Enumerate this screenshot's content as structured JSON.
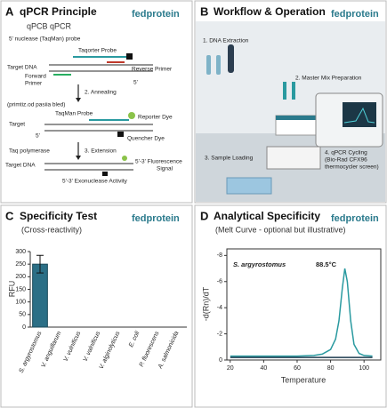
{
  "panels": {
    "a": {
      "letter": "A",
      "title": "qPCR Principle",
      "brand": "fedprotein",
      "subtitle": "qPCB qPCR",
      "labels": [
        "5' nuclease (TaqMan) probe",
        "Taqorter Probe",
        "Target DNA",
        "Reverse Primer",
        "Forward",
        "Primer",
        "5'",
        "2. Annealing",
        "(primtiz.od pasiia bled)",
        "TaqMan Probe",
        "Target",
        "Reporter Dye",
        "Quencher Dye",
        "5'",
        "Taq polymerase",
        "3. Extension",
        "Target DNA",
        "5'-3' Fluorescence",
        "Signal",
        "5'-3' Exonuclease Activity"
      ]
    },
    "b": {
      "letter": "B",
      "title": "Workflow & Operation",
      "brand": "fedprotein",
      "labels": [
        "1. DNA Extraction",
        "2. Master Mix Preparation",
        "3. Sample Loading",
        "4. qPCR Cycling",
        "(Bio-Rad CFX96",
        "thermocycler screen)"
      ]
    }
  },
  "chart_data": [
    {
      "type": "bar",
      "panel": "C",
      "title": "Specificity Test",
      "subtitle": "(Cross-reactivity)",
      "brand": "fedprotein",
      "y_label": "RFU",
      "categories": [
        "S. argyrostomus",
        "V. anguillarum",
        "V. vulnificus",
        "V. valnificus",
        "V. alginolyticus",
        "E. coli",
        "P. fluorescens",
        "A. salmonicida"
      ],
      "values": [
        250,
        0,
        0,
        0,
        0,
        0,
        0,
        0
      ],
      "errors": [
        35,
        null,
        null,
        null,
        null,
        null,
        null,
        null
      ],
      "color": "#2b6f86",
      "ylim": [
        0,
        300
      ],
      "yticks": [
        0,
        50,
        100,
        150,
        200,
        250,
        300
      ]
    },
    {
      "type": "line",
      "panel": "D",
      "title": "Analytical Specificity",
      "subtitle": "(Melt Curve - optional but illustrative)",
      "brand": "fedprotein",
      "x_label": "Temperature",
      "y_label": "-d(Rn)/dT",
      "annotations": [
        "S. argyrostomus",
        "88.5°C"
      ],
      "x": [
        20,
        30,
        40,
        50,
        60,
        70,
        75,
        80,
        83,
        85,
        87,
        88.5,
        90,
        92,
        94,
        97,
        100,
        105
      ],
      "series": [
        {
          "color": "#2a9aa0",
          "values": [
            -0.3,
            -0.3,
            -0.3,
            -0.3,
            -0.3,
            -0.35,
            -0.45,
            -0.8,
            -1.6,
            -3.0,
            -5.5,
            -7.0,
            -6.0,
            -3.0,
            -1.2,
            -0.5,
            -0.35,
            -0.3
          ]
        },
        {
          "color": "#1d3b4f",
          "values": [
            -0.2,
            -0.2,
            -0.2,
            -0.2,
            -0.2,
            -0.2,
            -0.2,
            -0.2,
            -0.2,
            -0.2,
            -0.2,
            -0.2,
            -0.2,
            -0.2,
            -0.2,
            -0.2,
            -0.2,
            -0.2
          ]
        }
      ],
      "xlim": [
        18,
        110
      ],
      "xticks": [
        20,
        40,
        60,
        80,
        100
      ],
      "ylim": [
        0,
        -8.5
      ],
      "yticks": [
        -8,
        -6,
        -4,
        -2,
        0
      ]
    }
  ]
}
